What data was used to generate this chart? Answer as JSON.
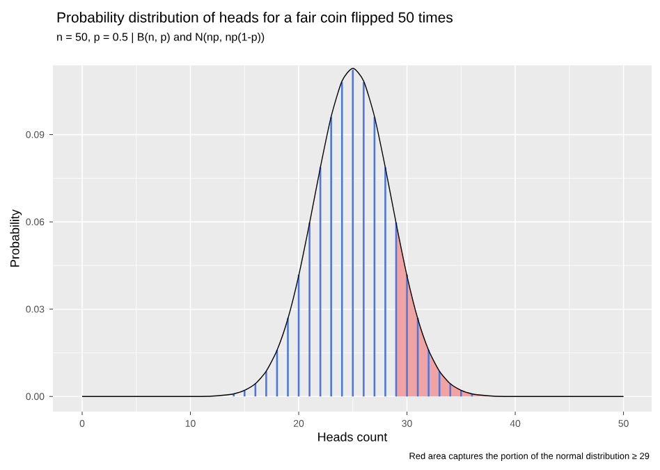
{
  "chart_data": {
    "type": "bar",
    "title": "Probability distribution of heads for a fair coin flipped 50 times",
    "subtitle": "n = 50, p = 0.5 | B(n, p) and N(np, np(1-p))",
    "xlabel": "Heads count",
    "ylabel": "Probability",
    "annotations": [
      "Red area captures the portion of the normal distribution ≥ 29"
    ],
    "x": [
      0,
      1,
      2,
      3,
      4,
      5,
      6,
      7,
      8,
      9,
      10,
      11,
      12,
      13,
      14,
      15,
      16,
      17,
      18,
      19,
      20,
      21,
      22,
      23,
      24,
      25,
      26,
      27,
      28,
      29,
      30,
      31,
      32,
      33,
      34,
      35,
      36,
      37,
      38,
      39,
      40,
      41,
      42,
      43,
      44,
      45,
      46,
      47,
      48,
      49,
      50
    ],
    "series": [
      {
        "type": "area",
        "color": "#f0a3a3",
        "x": [
          29,
          30,
          31,
          32,
          33,
          34,
          35,
          36,
          37,
          38,
          39,
          40,
          45,
          50
        ],
        "values": [
          0.0595,
          0.0415,
          0.0267,
          0.0159,
          0.0087,
          0.0044,
          0.0021,
          0.0009,
          0.0004,
          0.0001,
          0,
          0,
          0,
          0
        ]
      },
      {
        "color": "#4a78e0",
        "values": [
          0,
          0,
          0,
          0,
          0,
          0,
          0,
          0,
          0,
          0,
          0,
          0,
          0,
          null,
          0.0008,
          0.002,
          0.0044,
          0.0087,
          0.016,
          0.027,
          0.0419,
          0.0598,
          0.0788,
          0.096,
          0.108,
          0.1123,
          0.108,
          0.096,
          0.0788,
          0.0598,
          0.0419,
          0.027,
          0.016,
          0.0087,
          0.0044,
          0.002,
          0.0008,
          null,
          0,
          0,
          0,
          0,
          0,
          0,
          0,
          0,
          0,
          0,
          0,
          0,
          0
        ]
      },
      {
        "type": "line",
        "color": "#000000",
        "x": [
          0,
          5,
          10,
          11,
          12,
          13,
          14,
          15,
          16,
          17,
          18,
          19,
          20,
          21,
          22,
          23,
          24,
          25,
          26,
          27,
          28,
          29,
          30,
          31,
          32,
          33,
          34,
          35,
          36,
          37,
          38,
          39,
          40,
          45,
          50
        ],
        "values": [
          0,
          0,
          0,
          0,
          0.0001,
          0.0004,
          0.0009,
          0.0021,
          0.0044,
          0.0087,
          0.0159,
          0.0267,
          0.0415,
          0.0595,
          0.0787,
          0.0962,
          0.1084,
          0.1128,
          0.1084,
          0.0962,
          0.0787,
          0.0595,
          0.0415,
          0.0267,
          0.0159,
          0.0087,
          0.0044,
          0.0021,
          0.0009,
          0.0004,
          0.0001,
          0,
          0,
          0,
          0
        ]
      }
    ],
    "xlim": [
      -2.7,
      52.6
    ],
    "ylim": [
      -0.0052,
      0.1138
    ],
    "xticks": [
      0,
      10,
      20,
      30,
      40,
      50
    ],
    "yticks": [
      {
        "value": 0,
        "label": "0.00"
      },
      {
        "value": 0.03,
        "label": "0.03"
      },
      {
        "value": 0.06,
        "label": "0.06"
      },
      {
        "value": 0.09,
        "label": "0.09"
      }
    ],
    "grid": true,
    "marker": "none"
  }
}
